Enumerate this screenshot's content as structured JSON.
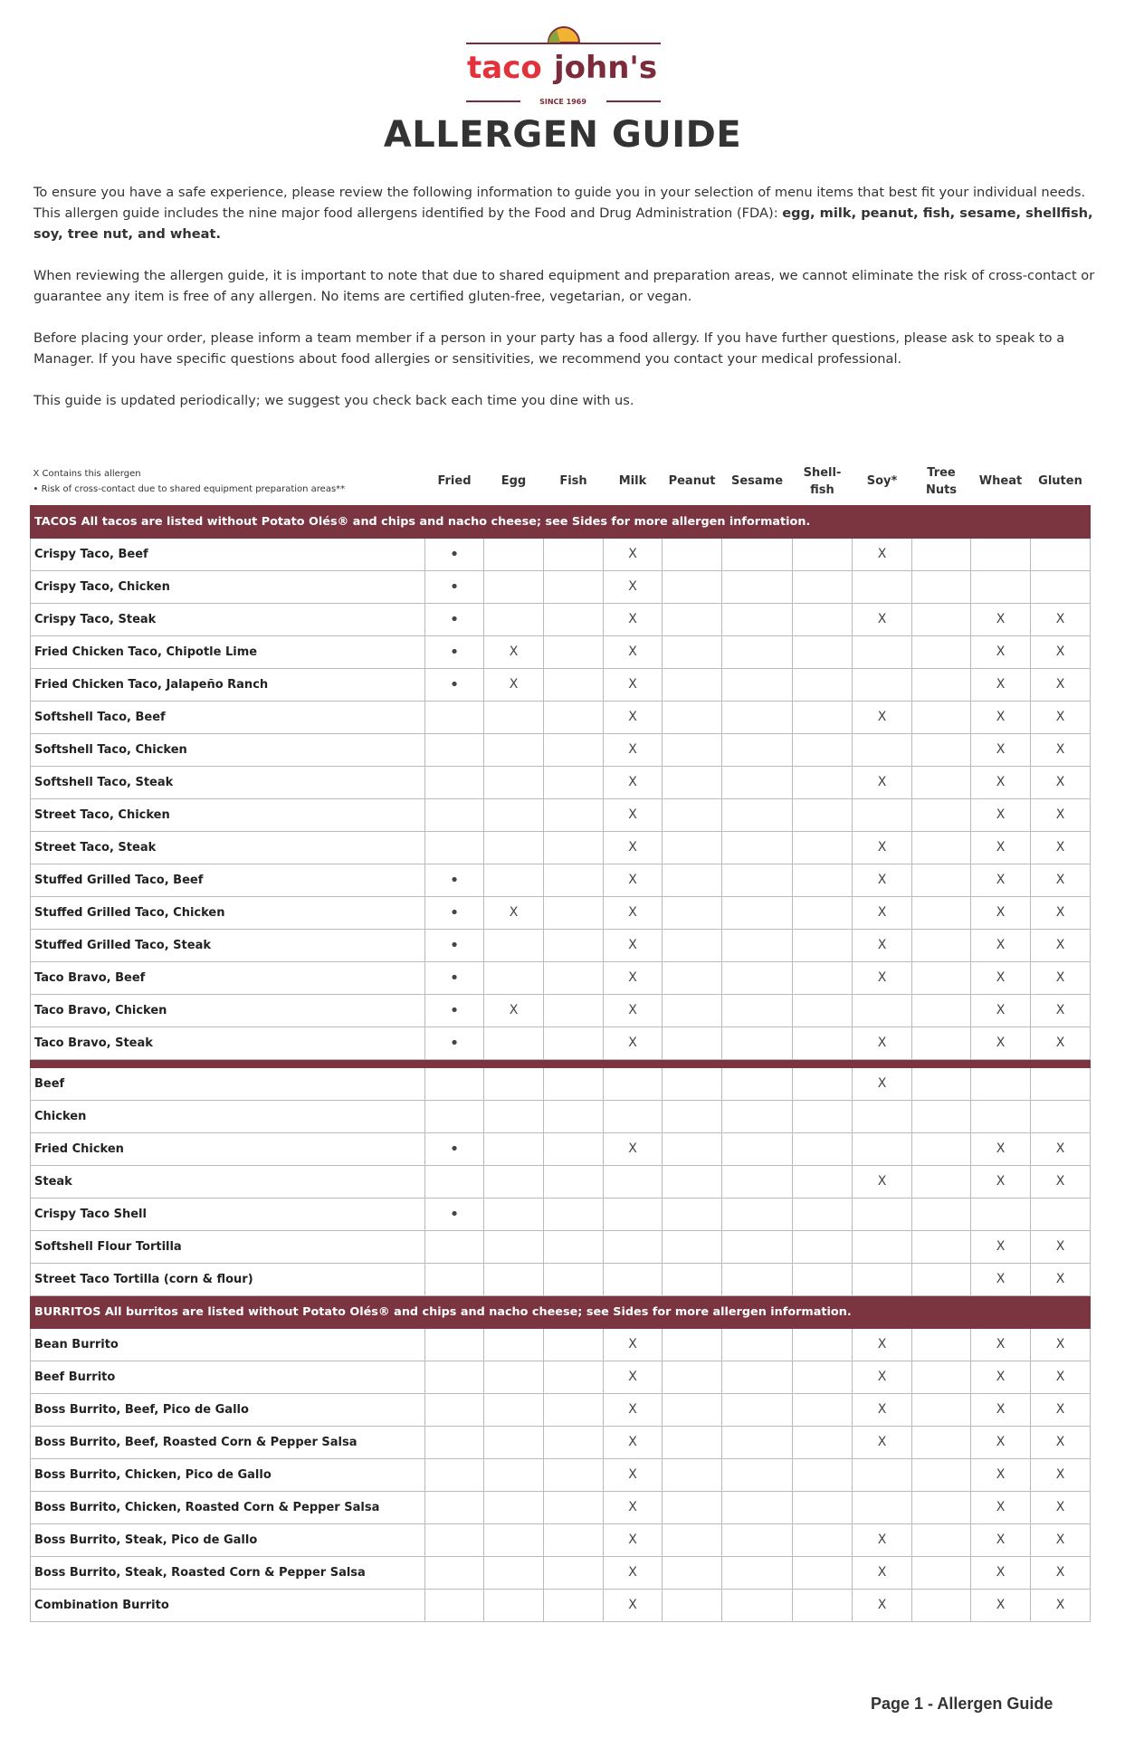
{
  "brand": {
    "name": "taco john's",
    "since": "SINCE 1969",
    "colors": {
      "red": "#e3323b",
      "maroon": "#7b2b3a",
      "band": "#7b3540"
    }
  },
  "title": "ALLERGEN GUIDE",
  "intro": {
    "p1a": "To ensure you have a safe experience, please review the following information to guide you in your selection of menu items that best fit your individual needs. This allergen guide includes the nine major food allergens identified by the Food and Drug Administration (FDA): ",
    "p1b": "egg, milk, peanut, fish, sesame, shellfish, soy, tree nut, and wheat.",
    "p2": "When reviewing the allergen guide, it is important to note that due to shared equipment and preparation areas, we cannot eliminate the risk of cross-contact or guarantee any item is free of any allergen. No items are certified gluten-free, vegetarian, or vegan.",
    "p3": "Before placing your order, please inform a team member if a person in your party has a food allergy. If you have further questions, please ask to speak to a Manager. If you have specific questions about food allergies or sensitivities, we recommend you contact your medical professional.",
    "p4": "This guide is updated periodically; we suggest you check back each time you dine with us."
  },
  "legend": {
    "x": "X  Contains this allergen",
    "dot": "•  Risk of cross-contact due to shared equipment preparation areas**"
  },
  "columns": [
    "Fried",
    "Egg",
    "Fish",
    "Milk",
    "Peanut",
    "Sesame",
    "Shell-\nfish",
    "Soy*",
    "Tree\nNuts",
    "Wheat",
    "Gluten"
  ],
  "sections": [
    {
      "band": "TACOS All tacos are listed without Potato Olés® and chips and nacho cheese; see Sides for more allergen information.",
      "rows": [
        {
          "name": "Crispy Taco, Beef",
          "v": [
            "•",
            "",
            "",
            "X",
            "",
            "",
            "",
            "X",
            "",
            "",
            ""
          ]
        },
        {
          "name": "Crispy Taco, Chicken",
          "v": [
            "•",
            "",
            "",
            "X",
            "",
            "",
            "",
            "",
            "",
            "",
            ""
          ]
        },
        {
          "name": "Crispy Taco, Steak",
          "v": [
            "•",
            "",
            "",
            "X",
            "",
            "",
            "",
            "X",
            "",
            "X",
            "X"
          ]
        },
        {
          "name": "Fried Chicken Taco, Chipotle Lime",
          "v": [
            "•",
            "X",
            "",
            "X",
            "",
            "",
            "",
            "",
            "",
            "X",
            "X"
          ]
        },
        {
          "name": "Fried Chicken Taco, Jalapeño Ranch",
          "v": [
            "•",
            "X",
            "",
            "X",
            "",
            "",
            "",
            "",
            "",
            "X",
            "X"
          ]
        },
        {
          "name": "Softshell Taco, Beef",
          "v": [
            "",
            "",
            "",
            "X",
            "",
            "",
            "",
            "X",
            "",
            "X",
            "X"
          ]
        },
        {
          "name": "Softshell Taco, Chicken",
          "v": [
            "",
            "",
            "",
            "X",
            "",
            "",
            "",
            "",
            "",
            "X",
            "X"
          ]
        },
        {
          "name": "Softshell Taco, Steak",
          "v": [
            "",
            "",
            "",
            "X",
            "",
            "",
            "",
            "X",
            "",
            "X",
            "X"
          ]
        },
        {
          "name": "Street Taco, Chicken",
          "v": [
            "",
            "",
            "",
            "X",
            "",
            "",
            "",
            "",
            "",
            "X",
            "X"
          ]
        },
        {
          "name": "Street Taco, Steak",
          "v": [
            "",
            "",
            "",
            "X",
            "",
            "",
            "",
            "X",
            "",
            "X",
            "X"
          ]
        },
        {
          "name": "Stuffed Grilled Taco, Beef",
          "v": [
            "•",
            "",
            "",
            "X",
            "",
            "",
            "",
            "X",
            "",
            "X",
            "X"
          ]
        },
        {
          "name": "Stuffed Grilled Taco, Chicken",
          "v": [
            "•",
            "X",
            "",
            "X",
            "",
            "",
            "",
            "X",
            "",
            "X",
            "X"
          ]
        },
        {
          "name": "Stuffed Grilled Taco, Steak",
          "v": [
            "•",
            "",
            "",
            "X",
            "",
            "",
            "",
            "X",
            "",
            "X",
            "X"
          ]
        },
        {
          "name": "Taco Bravo, Beef",
          "v": [
            "•",
            "",
            "",
            "X",
            "",
            "",
            "",
            "X",
            "",
            "X",
            "X"
          ]
        },
        {
          "name": "Taco Bravo, Chicken",
          "v": [
            "•",
            "X",
            "",
            "X",
            "",
            "",
            "",
            "",
            "",
            "X",
            "X"
          ]
        },
        {
          "name": "Taco Bravo, Steak",
          "v": [
            "•",
            "",
            "",
            "X",
            "",
            "",
            "",
            "X",
            "",
            "X",
            "X"
          ]
        }
      ]
    },
    {
      "band": "",
      "rows": [
        {
          "name": "Beef",
          "v": [
            "",
            "",
            "",
            "",
            "",
            "",
            "",
            "X",
            "",
            "",
            ""
          ]
        },
        {
          "name": "Chicken",
          "v": [
            "",
            "",
            "",
            "",
            "",
            "",
            "",
            "",
            "",
            "",
            ""
          ]
        },
        {
          "name": "Fried Chicken",
          "v": [
            "•",
            "",
            "",
            "X",
            "",
            "",
            "",
            "",
            "",
            "X",
            "X"
          ]
        },
        {
          "name": "Steak",
          "v": [
            "",
            "",
            "",
            "",
            "",
            "",
            "",
            "X",
            "",
            "X",
            "X"
          ]
        },
        {
          "name": "Crispy Taco Shell",
          "v": [
            "•",
            "",
            "",
            "",
            "",
            "",
            "",
            "",
            "",
            "",
            ""
          ]
        },
        {
          "name": "Softshell Flour Tortilla",
          "v": [
            "",
            "",
            "",
            "",
            "",
            "",
            "",
            "",
            "",
            "X",
            "X"
          ]
        },
        {
          "name": "Street Taco Tortilla (corn & flour)",
          "v": [
            "",
            "",
            "",
            "",
            "",
            "",
            "",
            "",
            "",
            "X",
            "X"
          ]
        }
      ]
    },
    {
      "band": "BURRITOS All burritos are listed without Potato Olés® and chips and nacho cheese; see Sides for more allergen information.",
      "rows": [
        {
          "name": "Bean Burrito",
          "v": [
            "",
            "",
            "",
            "X",
            "",
            "",
            "",
            "X",
            "",
            "X",
            "X"
          ]
        },
        {
          "name": "Beef Burrito",
          "v": [
            "",
            "",
            "",
            "X",
            "",
            "",
            "",
            "X",
            "",
            "X",
            "X"
          ]
        },
        {
          "name": "Boss Burrito, Beef, Pico de Gallo",
          "v": [
            "",
            "",
            "",
            "X",
            "",
            "",
            "",
            "X",
            "",
            "X",
            "X"
          ]
        },
        {
          "name": "Boss Burrito, Beef, Roasted Corn & Pepper Salsa",
          "v": [
            "",
            "",
            "",
            "X",
            "",
            "",
            "",
            "X",
            "",
            "X",
            "X"
          ]
        },
        {
          "name": "Boss Burrito, Chicken, Pico de Gallo",
          "v": [
            "",
            "",
            "",
            "X",
            "",
            "",
            "",
            "",
            "",
            "X",
            "X"
          ]
        },
        {
          "name": "Boss Burrito, Chicken, Roasted Corn & Pepper Salsa",
          "v": [
            "",
            "",
            "",
            "X",
            "",
            "",
            "",
            "",
            "",
            "X",
            "X"
          ]
        },
        {
          "name": "Boss Burrito, Steak, Pico de Gallo",
          "v": [
            "",
            "",
            "",
            "X",
            "",
            "",
            "",
            "X",
            "",
            "X",
            "X"
          ]
        },
        {
          "name": "Boss Burrito, Steak, Roasted Corn & Pepper Salsa",
          "v": [
            "",
            "",
            "",
            "X",
            "",
            "",
            "",
            "X",
            "",
            "X",
            "X"
          ]
        },
        {
          "name": "Combination Burrito",
          "v": [
            "",
            "",
            "",
            "X",
            "",
            "",
            "",
            "X",
            "",
            "X",
            "X"
          ]
        }
      ]
    }
  ],
  "footer": "Page 1 - Allergen Guide"
}
